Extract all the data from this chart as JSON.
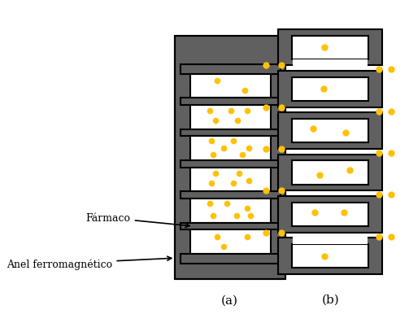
{
  "fig_width": 5.03,
  "fig_height": 4.14,
  "dpi": 100,
  "bg_color": "#ffffff",
  "gray_color": "#606060",
  "black": "#000000",
  "white": "#ffffff",
  "dot_color": "#FFC107",
  "label_a": "(a)",
  "label_b": "(b)",
  "label_farmaco": "Fármaco",
  "label_anel": "Anel ferromagnético",
  "num_rings": 6
}
